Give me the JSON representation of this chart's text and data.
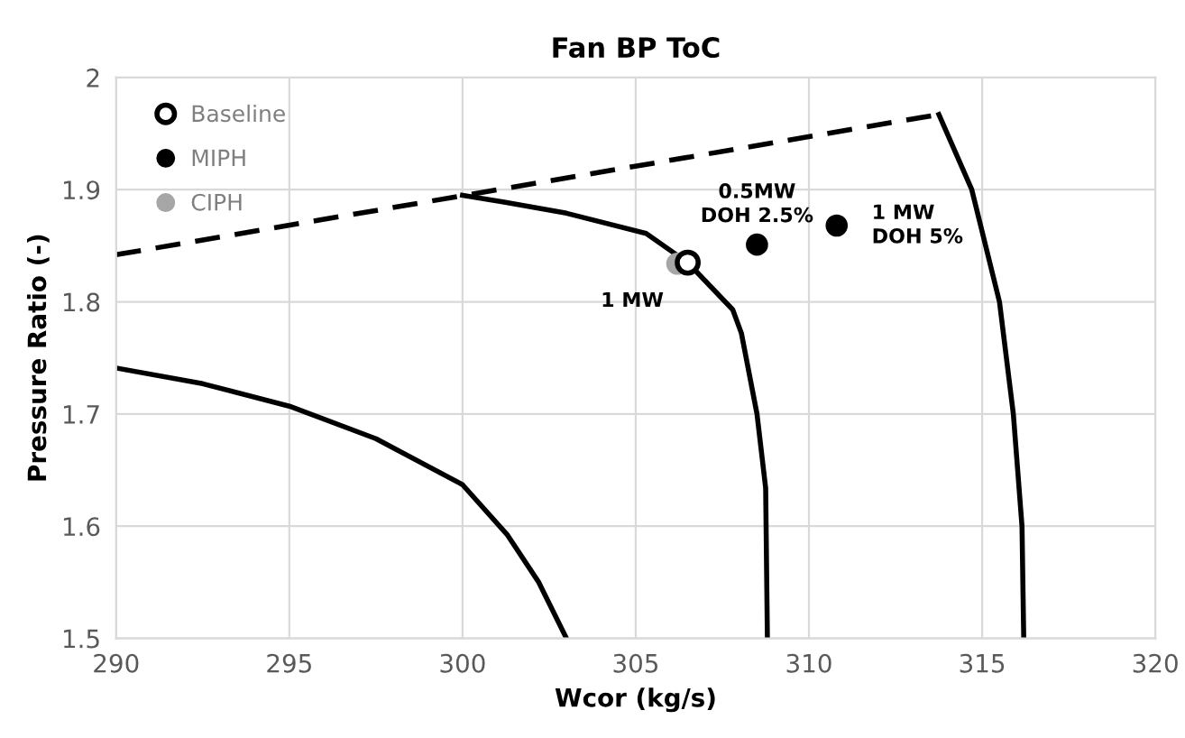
{
  "chart_data": {
    "type": "scatter",
    "title": "Fan BP ToC",
    "xlabel": "Wcor (kg/s)",
    "ylabel": "Pressure Ratio (-)",
    "xlim": [
      290,
      320
    ],
    "ylim": [
      1.5,
      2
    ],
    "xticks": [
      290,
      295,
      300,
      305,
      310,
      315,
      320
    ],
    "yticks": [
      {
        "value": 1.5,
        "label": "1.5"
      },
      {
        "value": 1.6,
        "label": "1.6"
      },
      {
        "value": 1.7,
        "label": "1.7"
      },
      {
        "value": 1.8,
        "label": "1.8"
      },
      {
        "value": 1.9,
        "label": "1.9"
      },
      {
        "value": 2,
        "label": "2"
      }
    ],
    "grid": true,
    "legend": "top left",
    "series": [
      {
        "type": "line",
        "color": "#000000",
        "line_style": "dashed",
        "marker": "none",
        "x": [
          290,
          313.75
        ],
        "values": [
          1.842,
          1.967
        ]
      },
      {
        "type": "line",
        "color": "#000000",
        "line_style": "solid",
        "marker": "none",
        "x": [
          290,
          292.5,
          295,
          297.5,
          300,
          301.3,
          302.2,
          303
        ],
        "values": [
          1.741,
          1.727,
          1.707,
          1.678,
          1.637,
          1.592,
          1.55,
          1.5
        ]
      },
      {
        "type": "line",
        "color": "#000000",
        "line_style": "solid",
        "marker": "none",
        "x": [
          300,
          301.2,
          303,
          305.3,
          306.5,
          307.8,
          308.05,
          308.5,
          308.75,
          308.8
        ],
        "values": [
          1.895,
          1.889,
          1.879,
          1.861,
          1.835,
          1.793,
          1.772,
          1.7,
          1.634,
          1.5
        ]
      },
      {
        "type": "line",
        "color": "#000000",
        "line_style": "solid",
        "marker": "none",
        "x": [
          313.75,
          314.7,
          315.5,
          315.9,
          316.15,
          316.2
        ],
        "values": [
          1.967,
          1.9,
          1.8,
          1.7,
          1.6,
          1.5
        ]
      },
      {
        "name": "Baseline",
        "color": "#000000",
        "marker": "open circle",
        "x": [
          306.5
        ],
        "values": [
          1.835
        ]
      },
      {
        "name": "MIPH",
        "color": "#000000",
        "marker": "circle",
        "x": [
          308.5,
          310.8
        ],
        "values": [
          1.851,
          1.868
        ]
      },
      {
        "name": "CIPH",
        "color": "#a6a6a6",
        "marker": "circle",
        "x": [
          306.2
        ],
        "values": [
          1.834
        ]
      }
    ],
    "annotations": [
      {
        "text": "1 MW",
        "x": 306.2,
        "y": 1.834
      },
      {
        "text": "0.5MW\nDOH 2.5%",
        "x": 308.5,
        "y": 1.851
      },
      {
        "text": "1 MW\nDOH 5%",
        "x": 310.8,
        "y": 1.868
      }
    ]
  }
}
